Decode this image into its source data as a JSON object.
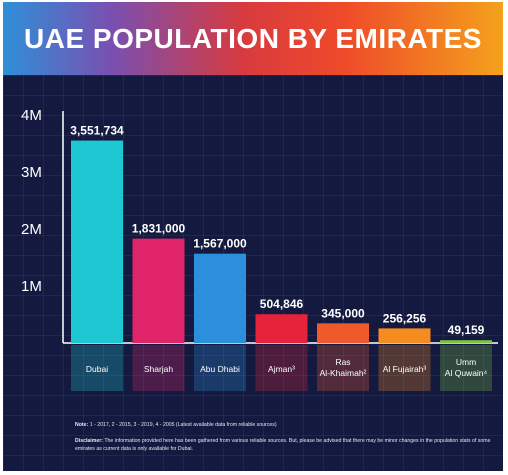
{
  "header": {
    "title": "UAE POPULATION BY EMIRATES"
  },
  "chart_data": {
    "type": "bar",
    "categories": [
      "Dubai",
      "Sharjah",
      "Abu Dhabi",
      "Ajman³",
      "Ras\nAl-Khaimah²",
      "Al Fujairah³",
      "Umm\nAl Quwain⁴"
    ],
    "values": [
      3551734,
      1831000,
      1567000,
      504846,
      345000,
      256256,
      49159
    ],
    "value_labels": [
      "3,551,734",
      "1,831,000",
      "1,567,000",
      "504,846",
      "345,000",
      "256,256",
      "49,159"
    ],
    "y_ticks": [
      {
        "value": 1000000,
        "label": "1M"
      },
      {
        "value": 2000000,
        "label": "2M"
      },
      {
        "value": 3000000,
        "label": "3M"
      },
      {
        "value": 4000000,
        "label": "4M"
      }
    ],
    "ylim": [
      0,
      4000000
    ],
    "grid": true,
    "colors": [
      "#1ec8d2",
      "#e0246a",
      "#2b8fdc",
      "#e6233a",
      "#f0592c",
      "#f68c1f",
      "#7cc242"
    ]
  },
  "footer": {
    "note_label": "Note:",
    "note_text": " 1 - 2017, 2 - 2015, 3 - 2019, 4 - 2005 (Latest available data from reliable sources)",
    "disclaimer_label": "Disclaimer:",
    "disclaimer_text": " The information provided here has been gathered from various reliable sources. But, please be advised that there may be minor changes in the population stats of some emirates as current data is only available for Dubai."
  }
}
